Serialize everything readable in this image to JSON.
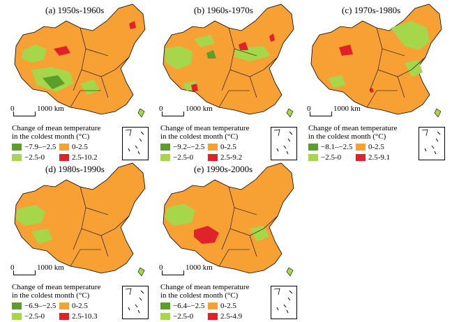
{
  "colors": {
    "dark_green": "#5c9e2c",
    "light_green": "#a6d64a",
    "orange": "#f7a135",
    "red": "#e0232a"
  },
  "scale": {
    "zero": "0",
    "dist": "1000 km"
  },
  "legend_title_line1": "Change of mean temperature",
  "legend_title_line2": "in the coldest month (°C)",
  "panels": [
    {
      "title": "(a) 1950s-1960s",
      "legend": [
        "−7.9–−2.5",
        "0-2.5",
        "−2.5-0",
        "2.5-10.2"
      ]
    },
    {
      "title": "(b) 1960s-1970s",
      "legend": [
        "−9.2–−2.5",
        "0-2.5",
        "−2.5-0",
        "2.5-9.2"
      ]
    },
    {
      "title": "(c) 1970s-1980s",
      "legend": [
        "−8.1–−2.5",
        "0-2.5",
        "−2.5-0",
        "2.5-9.1"
      ]
    },
    {
      "title": "(d) 1980s-1990s",
      "legend": [
        "−6.9–−2.5",
        "0-2.5",
        "−2.5-0",
        "2.5-10.3"
      ]
    },
    {
      "title": "(e) 1990s-2000s",
      "legend": [
        "−6.4–−2.5",
        "0-2.5",
        "−2.5-0",
        "2.5-4.9"
      ]
    }
  ]
}
